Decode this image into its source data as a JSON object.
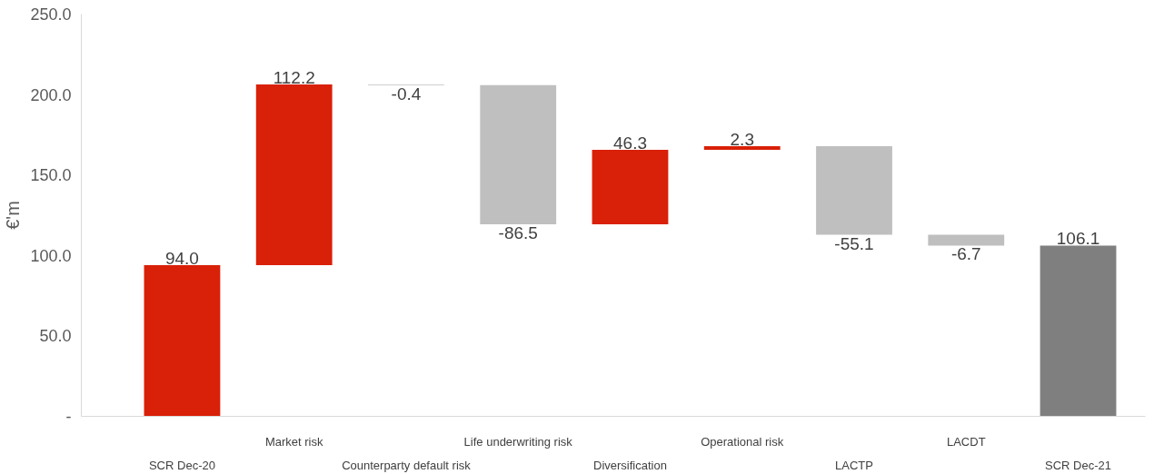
{
  "chart_data": {
    "type": "bar",
    "ylabel": "€'m",
    "categories": [
      "SCR Dec-20",
      "Market risk",
      "Counterparty default risk",
      "Life underwriting risk",
      "Diversification",
      "Operational risk",
      "LACTP",
      "LACDT",
      "SCR Dec-21"
    ],
    "values": [
      94.0,
      112.2,
      -0.4,
      -86.5,
      46.3,
      2.3,
      -55.1,
      -6.7,
      106.1
    ],
    "base": [
      0,
      94.0,
      206.2,
      205.8,
      119.3,
      165.6,
      167.9,
      112.8,
      0
    ],
    "colors": [
      "#d92008",
      "#d92008",
      "#bfbfbf",
      "#bfbfbf",
      "#d92008",
      "#d92008",
      "#bfbfbf",
      "#bfbfbf",
      "#7f7f7f"
    ],
    "value_labels": [
      "94.0",
      "112.2",
      "-0.4",
      "-86.5",
      "46.3",
      "2.3",
      "-55.1",
      "-6.7",
      "106.1"
    ],
    "ylim": [
      0,
      250
    ],
    "yticks": [
      {
        "value": 0,
        "label": "-"
      },
      {
        "value": 50,
        "label": "50.0"
      },
      {
        "value": 100,
        "label": "100.0"
      },
      {
        "value": 150,
        "label": "150.0"
      },
      {
        "value": 200,
        "label": "200.0"
      },
      {
        "value": 250,
        "label": "250.0"
      }
    ],
    "grid": false
  }
}
